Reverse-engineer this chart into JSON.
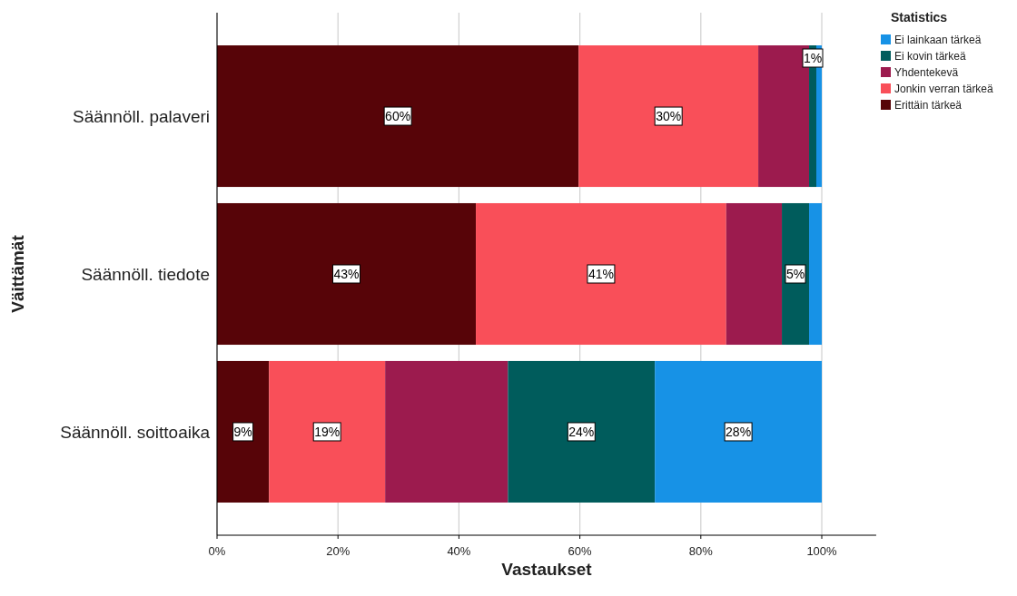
{
  "chart_data": {
    "type": "bar",
    "orientation": "horizontal",
    "stacked": true,
    "xlabel": "Vastaukset",
    "ylabel": "Väittämät",
    "legend_title": "Statistics",
    "legend": "top right",
    "grid": "x",
    "categories": [
      "Säännöll. palaveri",
      "Säännöll. tiedote",
      "Säännöll. soittoaika"
    ],
    "xlim": [
      0,
      109
    ],
    "xticks": [
      {
        "value": 0,
        "label": "0%"
      },
      {
        "value": 20,
        "label": "20%"
      },
      {
        "value": 40,
        "label": "40%"
      },
      {
        "value": 60,
        "label": "60%"
      },
      {
        "value": 80,
        "label": "80%"
      },
      {
        "value": 100,
        "label": "100%"
      }
    ],
    "series": [
      {
        "name": "Erittäin tärkeä",
        "color": "#570408",
        "values": [
          59.8,
          42.8,
          8.6
        ],
        "value_labels": [
          "60%",
          "43%",
          "9%"
        ]
      },
      {
        "name": "Jonkin verran tärkeä",
        "color": "#f94f59",
        "values": [
          29.7,
          41.4,
          19.2
        ],
        "value_labels": [
          "30%",
          "41%",
          "19%"
        ]
      },
      {
        "name": "Yhdentekevä",
        "color": "#9c1b4e",
        "values": [
          8.4,
          9.2,
          20.3
        ],
        "value_labels": [
          null,
          null,
          null
        ]
      },
      {
        "name": "Ei kovin tärkeä",
        "color": "#005c5c",
        "values": [
          1.2,
          4.5,
          24.3
        ],
        "value_labels": [
          "1%",
          "5%",
          "24%"
        ]
      },
      {
        "name": "Ei lainkaan tärkeä",
        "color": "#1792e6",
        "values": [
          0.9,
          2.1,
          27.6
        ],
        "value_labels": [
          null,
          null,
          "28%"
        ]
      }
    ]
  }
}
